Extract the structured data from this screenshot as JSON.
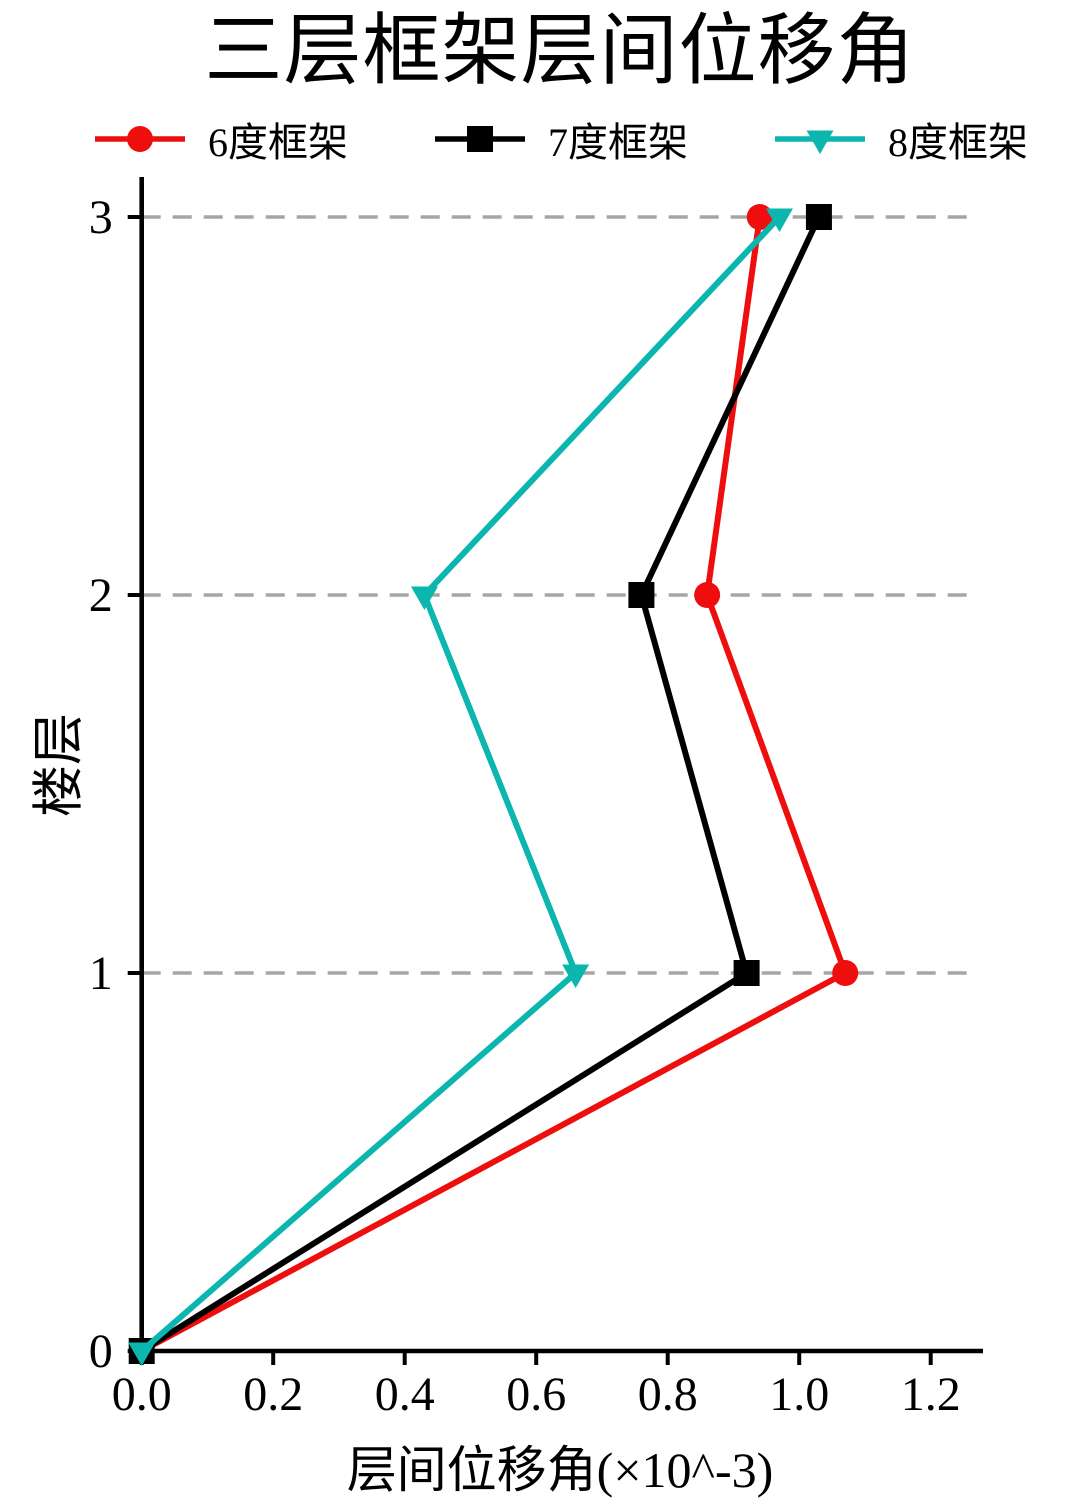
{
  "chart_data": {
    "type": "line",
    "title": "三层框架层间位移角",
    "xlabel": "层间位移角(×10^-3)",
    "ylabel": "楼层",
    "x_ticks": [
      0.0,
      0.2,
      0.4,
      0.6,
      0.8,
      1.0,
      1.2
    ],
    "x_tick_labels": [
      "0.0",
      "0.2",
      "0.4",
      "0.6",
      "0.8",
      "1.0",
      "1.2"
    ],
    "y_ticks": [
      0,
      1,
      2,
      3
    ],
    "y_tick_labels": [
      "0",
      "1",
      "2",
      "3"
    ],
    "xlim": [
      0,
      1.28
    ],
    "ylim": [
      0,
      3.1
    ],
    "grid": "horizontal-dashed",
    "grid_color": "#a6a6a6",
    "axis_color": "#000000",
    "legend_position": "top",
    "floors": [
      0,
      1,
      2,
      3
    ],
    "series": [
      {
        "name": "6度框架",
        "color": "#ee0e0e",
        "marker": "circle",
        "values": [
          0,
          1.07,
          0.86,
          0.94
        ]
      },
      {
        "name": "7度框架",
        "color": "#000000",
        "marker": "square",
        "values": [
          0,
          0.92,
          0.76,
          1.03
        ]
      },
      {
        "name": "8度框架",
        "color": "#0ab6ae",
        "marker": "triangle-down",
        "values": [
          0,
          0.66,
          0.43,
          0.97
        ]
      }
    ]
  }
}
